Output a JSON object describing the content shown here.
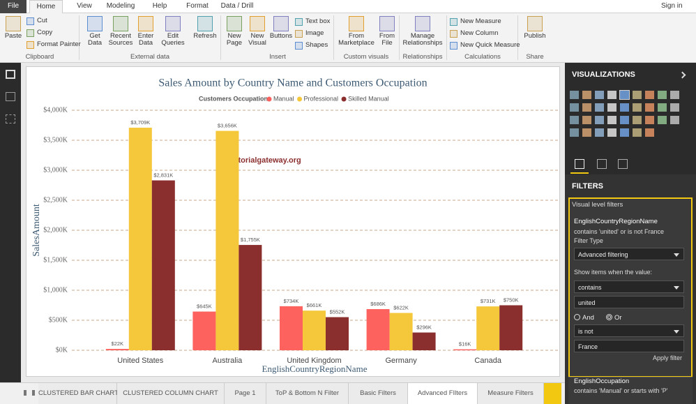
{
  "menu": {
    "tabs": [
      "File",
      "Home",
      "View",
      "Modeling",
      "Help",
      "Format",
      "Data / Drill"
    ],
    "sign_in": "Sign in"
  },
  "ribbon": {
    "groups": [
      {
        "label": "Clipboard",
        "buttons": [
          "Paste",
          "Cut",
          "Copy",
          "Format Painter"
        ]
      },
      {
        "label": "External data",
        "buttons": [
          "Get Data",
          "Recent Sources",
          "Enter Data",
          "Edit Queries",
          "Refresh"
        ]
      },
      {
        "label": "Insert",
        "buttons": [
          "New Page",
          "New Visual",
          "Buttons",
          "Text box",
          "Image",
          "Shapes"
        ]
      },
      {
        "label": "Custom visuals",
        "buttons": [
          "From Marketplace",
          "From File"
        ]
      },
      {
        "label": "Relationships",
        "buttons": [
          "Manage Relationships"
        ]
      },
      {
        "label": "Calculations",
        "buttons": [
          "New Measure",
          "New Column",
          "New Quick Measure"
        ]
      },
      {
        "label": "Share",
        "buttons": [
          "Publish"
        ]
      }
    ]
  },
  "chart_data": {
    "type": "bar",
    "title": "Sales Amount by Country Name and Customers Occupation",
    "legend_title": "Customers Occupation",
    "x_label": "EnglishCountryRegionName",
    "y_label": "SalesAmount",
    "annotations": [
      "©tutorialgateway.org"
    ],
    "categories": [
      "United States",
      "Australia",
      "United Kingdom",
      "Germany",
      "Canada"
    ],
    "series": [
      {
        "name": "Manual",
        "color": "#fd625e",
        "values": [
          22000,
          645000,
          734000,
          686000,
          16000
        ],
        "value_labels": [
          "$22K",
          "$645K",
          "$734K",
          "$686K",
          "$16K"
        ]
      },
      {
        "name": "Professional",
        "color": "#f5c73a",
        "values": [
          3709000,
          3656000,
          661000,
          622000,
          731000
        ],
        "value_labels": [
          "$3,709K",
          "$3,656K",
          "$661K",
          "$622K",
          "$731K"
        ]
      },
      {
        "name": "Skilled Manual",
        "color": "#8b2e2e",
        "values": [
          2831000,
          1755000,
          552000,
          296000,
          750000
        ],
        "value_labels": [
          "$2,831K",
          "$1,755K",
          "$552K",
          "$296K",
          "$750K"
        ]
      }
    ],
    "ylim": [
      0,
      4000000
    ],
    "yticks": [
      {
        "value": 0,
        "label": "$0K"
      },
      {
        "value": 500000,
        "label": "$500K"
      },
      {
        "value": 1000000,
        "label": "$1,000K"
      },
      {
        "value": 1500000,
        "label": "$1,500K"
      },
      {
        "value": 2000000,
        "label": "$2,000K"
      },
      {
        "value": 2500000,
        "label": "$2,500K"
      },
      {
        "value": 3000000,
        "label": "$3,000K"
      },
      {
        "value": 3500000,
        "label": "$3,500K"
      },
      {
        "value": 4000000,
        "label": "$4,000K"
      }
    ],
    "grid": true
  },
  "pages": {
    "tabs": [
      "CLUSTERED BAR CHART",
      "CLUSTERED COLUMN CHART",
      "Page 1",
      "ToP & Bottom N Filter",
      "Basic Filters",
      "Advanced FIlters",
      "Measure Filters"
    ],
    "selected": 5
  },
  "visualizations": {
    "title": "VISUALIZATIONS"
  },
  "filters": {
    "title": "FILTERS",
    "section": "Visual level filters",
    "card1": {
      "field": "EnglishCountryRegionName",
      "summary": "contains 'united' or is not France",
      "filter_type_label": "Filter Type",
      "filter_type": "Advanced filtering",
      "show_items": "Show items when the value:",
      "op1": "contains",
      "val1": "united",
      "and": "And",
      "or": "Or",
      "op2": "is not",
      "val2": "France",
      "apply": "Apply filter"
    },
    "card2": {
      "field": "EnglishOccupation",
      "summary": "contains 'Manual' or starts with 'P'"
    }
  }
}
